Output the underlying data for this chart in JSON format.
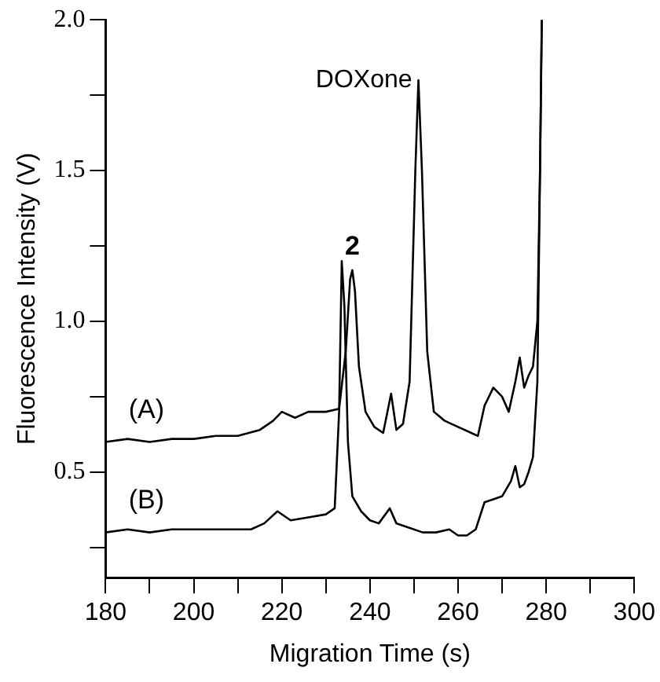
{
  "chart_data": {
    "type": "line",
    "xlabel": "Migration Time (s)",
    "ylabel": "Fluorescence Intensity (V)",
    "xlim": [
      180,
      300
    ],
    "xticks": [
      180,
      {
        "value": 190,
        "label": null
      },
      200,
      {
        "value": 210,
        "label": null
      },
      220,
      {
        "value": 230,
        "label": null
      },
      240,
      {
        "value": 250,
        "label": null
      },
      260,
      {
        "value": 270,
        "label": null
      },
      280,
      {
        "value": 290,
        "label": null
      },
      300
    ],
    "ylim": [
      0.15,
      2.0
    ],
    "yticks": [
      {
        "value": 0.25,
        "label": null
      },
      0.5,
      {
        "value": 0.75,
        "label": null
      },
      {
        "value": 1,
        "label": "1.0"
      },
      {
        "value": 1.25,
        "label": null
      },
      1.5,
      {
        "value": 1.75,
        "label": null
      },
      {
        "value": 2,
        "label": "2.0"
      }
    ],
    "grid": false,
    "legend": false,
    "marker": "none",
    "line_style": "solid",
    "annotations": [
      {
        "text": "2",
        "x": 236,
        "y": 1.17
      },
      {
        "text": "DOXone",
        "x": 251,
        "y": 1.8
      }
    ],
    "series": [
      {
        "name": "(A)",
        "color": "#000000",
        "x": [
          180,
          185,
          190,
          195,
          200,
          205,
          210,
          215,
          218,
          220,
          223,
          226,
          230,
          233,
          234.5,
          235.5,
          236,
          236.6,
          237.5,
          239,
          241,
          243,
          244.8,
          246,
          247.5,
          249,
          250.3,
          251,
          251.8,
          253,
          254.5,
          257,
          260,
          263,
          264.5,
          266,
          268,
          270,
          271.5,
          273,
          274,
          275,
          276,
          277,
          278,
          278.6,
          279
        ],
        "values": [
          0.6,
          0.61,
          0.6,
          0.61,
          0.61,
          0.62,
          0.62,
          0.64,
          0.67,
          0.7,
          0.68,
          0.7,
          0.7,
          0.71,
          0.9,
          1.14,
          1.17,
          1.1,
          0.85,
          0.7,
          0.65,
          0.63,
          0.76,
          0.64,
          0.66,
          0.8,
          1.5,
          1.8,
          1.5,
          0.9,
          0.7,
          0.67,
          0.65,
          0.63,
          0.62,
          0.72,
          0.78,
          0.75,
          0.7,
          0.8,
          0.88,
          0.78,
          0.82,
          0.85,
          1.0,
          1.5,
          2.0
        ]
      },
      {
        "name": "(B)",
        "color": "#000000",
        "x": [
          180,
          185,
          190,
          195,
          200,
          205,
          210,
          213,
          216,
          219,
          222,
          226,
          230,
          232,
          233,
          233.6,
          234.2,
          235,
          236,
          238,
          240,
          242,
          244.5,
          246,
          248,
          252,
          255,
          258,
          260,
          262,
          264,
          266,
          268,
          270,
          272,
          273,
          274,
          275,
          276,
          277,
          278,
          278.6,
          279
        ],
        "values": [
          0.3,
          0.31,
          0.3,
          0.31,
          0.31,
          0.31,
          0.31,
          0.31,
          0.33,
          0.37,
          0.34,
          0.35,
          0.36,
          0.38,
          0.7,
          1.2,
          1.05,
          0.6,
          0.42,
          0.37,
          0.34,
          0.33,
          0.38,
          0.33,
          0.32,
          0.3,
          0.3,
          0.31,
          0.29,
          0.29,
          0.31,
          0.4,
          0.41,
          0.42,
          0.47,
          0.52,
          0.45,
          0.46,
          0.5,
          0.55,
          0.8,
          1.5,
          2.0
        ]
      }
    ]
  }
}
